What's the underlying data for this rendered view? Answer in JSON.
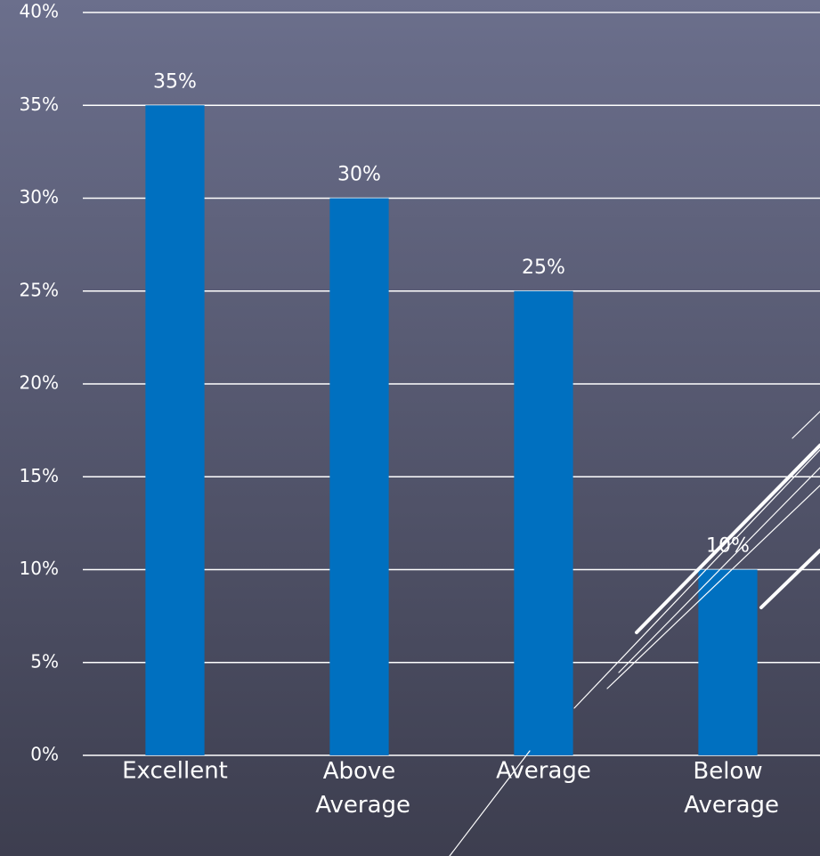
{
  "chart_data": {
    "type": "bar",
    "categories": [
      "Excellent",
      "Above Average",
      "Average",
      "Below Average"
    ],
    "values": [
      35,
      30,
      25,
      10
    ],
    "value_labels": [
      "35%",
      "30%",
      "25%",
      "10%"
    ],
    "color": "#0070c0",
    "ylim": [
      0,
      40
    ],
    "yticks": [
      {
        "value": 0,
        "label": "0%"
      },
      {
        "value": 5,
        "label": "5%"
      },
      {
        "value": 10,
        "label": "10%"
      },
      {
        "value": 15,
        "label": "15%"
      },
      {
        "value": 20,
        "label": "20%"
      },
      {
        "value": 25,
        "label": "25%"
      },
      {
        "value": 30,
        "label": "30%"
      },
      {
        "value": 35,
        "label": "35%"
      },
      {
        "value": 40,
        "label": "40%"
      }
    ],
    "grid": true
  }
}
